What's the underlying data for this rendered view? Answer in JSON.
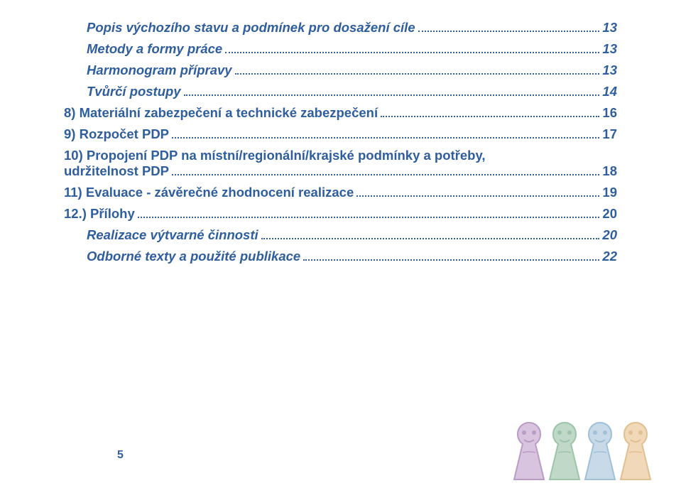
{
  "toc": {
    "entries": [
      {
        "text": "Popis výchozího stavu a podmínek pro dosažení cíle",
        "page": "13",
        "indent": true,
        "italic": true
      },
      {
        "text": "Metody a formy práce",
        "page": "13",
        "indent": true,
        "italic": true
      },
      {
        "text": "Harmonogram přípravy",
        "page": "13",
        "indent": true,
        "italic": true
      },
      {
        "text": "Tvůrčí postupy",
        "page": "14",
        "indent": true,
        "italic": true
      },
      {
        "text": "8) Materiální zabezpečení a technické zabezpečení",
        "page": "16",
        "indent": false,
        "italic": false
      },
      {
        "text": "9) Rozpočet PDP",
        "page": "17",
        "indent": false,
        "italic": false
      }
    ],
    "multiline": {
      "line1": "10) Propojení PDP na místní/regionální/krajské podmínky a potřeby,",
      "line2_text": "udržitelnost PDP",
      "line2_page": "18"
    },
    "entries2": [
      {
        "text": "11) Evaluace - závěrečné zhodnocení realizace",
        "page": "19",
        "indent": false,
        "italic": false
      },
      {
        "text": "12.) Přílohy",
        "page": "20",
        "indent": false,
        "italic": false
      },
      {
        "text": "Realizace výtvarné činnosti",
        "page": "20",
        "indent": true,
        "italic": true
      },
      {
        "text": "Odborné texty a použité publikace",
        "page": "22",
        "indent": true,
        "italic": true
      }
    ]
  },
  "pageNumber": "5",
  "decoration": {
    "keyholes": [
      {
        "fill": "#d9c4e0",
        "accent": "#b89cc5"
      },
      {
        "fill": "#c0d8c8",
        "accent": "#9cc4a8"
      },
      {
        "fill": "#c8dae8",
        "accent": "#a0c0d8"
      },
      {
        "fill": "#f0d8b8",
        "accent": "#e0c090"
      }
    ]
  },
  "colors": {
    "text": "#2e5e9e",
    "background": "#ffffff"
  }
}
